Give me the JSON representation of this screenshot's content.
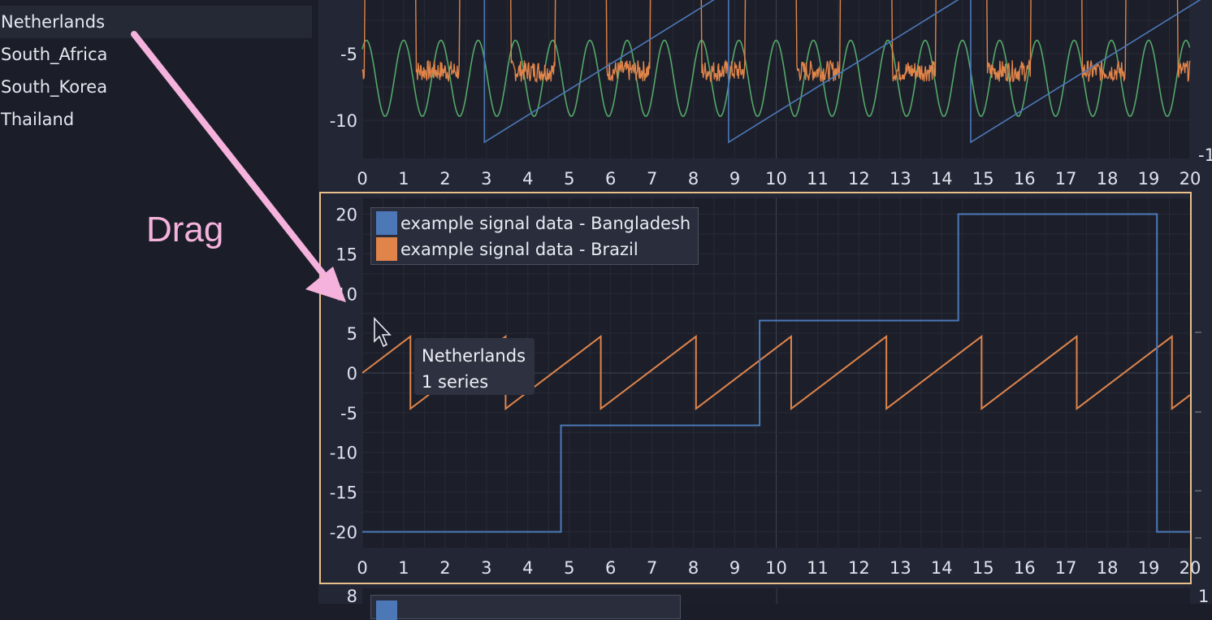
{
  "sidebar": {
    "items": [
      {
        "label": "Netherlands",
        "selected": true
      },
      {
        "label": "South_Africa",
        "selected": false
      },
      {
        "label": "South_Korea",
        "selected": false
      },
      {
        "label": "Thailand",
        "selected": false
      }
    ]
  },
  "annotation": {
    "drag_label": "Drag",
    "arrow_color": "#f4b2dc"
  },
  "tooltip": {
    "title": "Netherlands",
    "subtitle": "1 series"
  },
  "colors": {
    "blue": "#4c78b8",
    "orange": "#e0844a",
    "green": "#55a868",
    "selection_border": "#e8c08a"
  },
  "top_plot": {
    "x_ticks": [
      "0",
      "1",
      "2",
      "3",
      "4",
      "5",
      "6",
      "7",
      "8",
      "9",
      "10",
      "11",
      "12",
      "13",
      "14",
      "15",
      "16",
      "17",
      "18",
      "19",
      "20"
    ],
    "y_ticks": [
      "-5",
      "-10"
    ],
    "right_tick": "-1"
  },
  "main_plot": {
    "x_ticks": [
      "0",
      "1",
      "2",
      "3",
      "4",
      "5",
      "6",
      "7",
      "8",
      "9",
      "10",
      "11",
      "12",
      "13",
      "14",
      "15",
      "16",
      "17",
      "18",
      "19",
      "20"
    ],
    "y_ticks": [
      "20",
      "15",
      "10",
      "5",
      "0",
      "-5",
      "-10",
      "-15",
      "-20"
    ],
    "legend": [
      {
        "label": "example signal data - Bangladesh",
        "color": "#4c78b8"
      },
      {
        "label": "example signal data - Brazil",
        "color": "#e0844a"
      }
    ]
  },
  "bottom_plot": {
    "y_tick": "8",
    "right_tick": "1"
  },
  "chart_data": [
    {
      "type": "line",
      "series": [
        {
          "name": "example signal data - Bangladesh",
          "color": "#4c78b8",
          "points": [
            [
              0,
              -20
            ],
            [
              4.8,
              -20
            ],
            [
              4.8,
              -6.6
            ],
            [
              9.6,
              -6.6
            ],
            [
              9.6,
              6.6
            ],
            [
              14.4,
              6.6
            ],
            [
              14.4,
              20
            ],
            [
              19.2,
              20
            ],
            [
              19.2,
              -20
            ],
            [
              20,
              -20
            ]
          ]
        },
        {
          "name": "example signal data - Brazil",
          "color": "#e0844a",
          "sawtooth": {
            "period": 2.3,
            "min": -4.5,
            "max": 4.6,
            "start": 0
          }
        }
      ],
      "xlim": [
        0,
        20
      ],
      "ylim": [
        -22,
        22
      ]
    }
  ]
}
